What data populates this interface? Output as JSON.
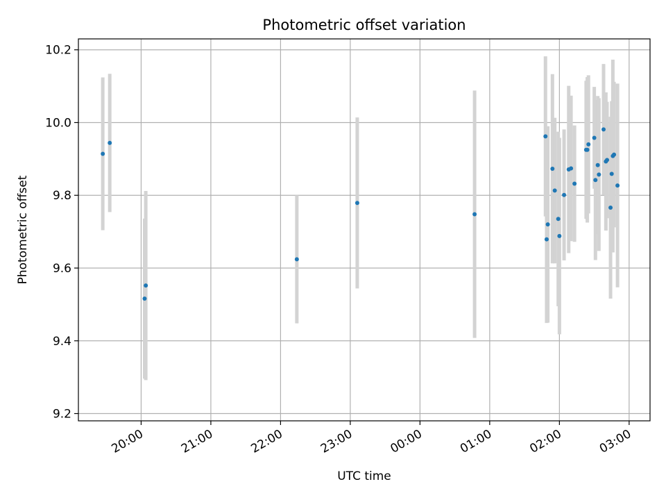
{
  "chart_data": {
    "type": "scatter",
    "title": "Photometric offset variation",
    "xlabel": "UTC time",
    "ylabel": "Photometric offset",
    "x_tick_labels": [
      "20:00",
      "21:00",
      "22:00",
      "23:00",
      "00:00",
      "01:00",
      "02:00",
      "03:00"
    ],
    "y_tick_labels": [
      "9.2",
      "9.4",
      "9.6",
      "9.8",
      "10.0",
      "10.2"
    ],
    "y_ticks": [
      9.2,
      9.4,
      9.6,
      9.8,
      10.0,
      10.2
    ],
    "ylim": [
      9.18,
      10.23
    ],
    "xlim": [
      "19:06",
      "03:18"
    ],
    "grid": true,
    "colors": {
      "points": "#1f77b4",
      "errorbars": "#d3d3d3",
      "grid": "#b0b0b0"
    },
    "points": [
      {
        "time": "19:27",
        "y": 9.914,
        "err": 0.21
      },
      {
        "time": "19:33",
        "y": 9.944,
        "err": 0.19
      },
      {
        "time": "20:03",
        "y": 9.516,
        "err": 0.22
      },
      {
        "time": "20:04",
        "y": 9.552,
        "err": 0.26
      },
      {
        "time": "22:14",
        "y": 9.624,
        "err": 0.176
      },
      {
        "time": "23:06",
        "y": 9.779,
        "err": 0.235
      },
      {
        "time": "00:47",
        "y": 9.748,
        "err": 0.34
      },
      {
        "time": "01:48",
        "y": 9.962,
        "err": 0.22
      },
      {
        "time": "01:49",
        "y": 9.679,
        "err": 0.23
      },
      {
        "time": "01:50",
        "y": 9.72,
        "err": 0.27
      },
      {
        "time": "01:54",
        "y": 9.873,
        "err": 0.26
      },
      {
        "time": "01:56",
        "y": 9.813,
        "err": 0.2
      },
      {
        "time": "01:59",
        "y": 9.735,
        "err": 0.24
      },
      {
        "time": "02:00",
        "y": 9.688,
        "err": 0.27
      },
      {
        "time": "02:04",
        "y": 9.801,
        "err": 0.18
      },
      {
        "time": "02:08",
        "y": 9.871,
        "err": 0.23
      },
      {
        "time": "02:10",
        "y": 9.874,
        "err": 0.2
      },
      {
        "time": "02:13",
        "y": 9.832,
        "err": 0.16
      },
      {
        "time": "02:23",
        "y": 9.925,
        "err": 0.19
      },
      {
        "time": "02:24",
        "y": 9.925,
        "err": 0.2
      },
      {
        "time": "02:25",
        "y": 9.94,
        "err": 0.19
      },
      {
        "time": "02:30",
        "y": 9.958,
        "err": 0.14
      },
      {
        "time": "02:31",
        "y": 9.842,
        "err": 0.22
      },
      {
        "time": "02:33",
        "y": 9.883,
        "err": 0.19
      },
      {
        "time": "02:34",
        "y": 9.857,
        "err": 0.21
      },
      {
        "time": "02:38",
        "y": 9.981,
        "err": 0.18
      },
      {
        "time": "02:40",
        "y": 9.893,
        "err": 0.19
      },
      {
        "time": "02:41",
        "y": 9.897,
        "err": 0.16
      },
      {
        "time": "02:44",
        "y": 9.766,
        "err": 0.25
      },
      {
        "time": "02:45",
        "y": 9.859,
        "err": 0.2
      },
      {
        "time": "02:46",
        "y": 9.908,
        "err": 0.265
      },
      {
        "time": "02:47",
        "y": 9.912,
        "err": 0.2
      },
      {
        "time": "02:50",
        "y": 9.827,
        "err": 0.28
      }
    ]
  }
}
